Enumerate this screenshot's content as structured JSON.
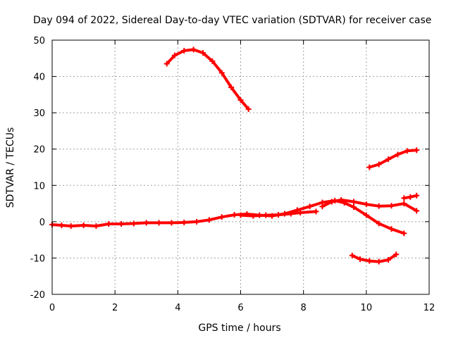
{
  "chart_data": {
    "type": "line",
    "title": "Day 094 of 2022, Sidereal Day-to-day VTEC variation (SDTVAR) for receiver case",
    "xlabel": "GPS time / hours",
    "ylabel": "SDTVAR / TECUs",
    "xlim": [
      0,
      12
    ],
    "ylim": [
      -20,
      50
    ],
    "xticks": [
      0,
      2,
      4,
      6,
      8,
      10,
      12
    ],
    "yticks": [
      -20,
      -10,
      0,
      10,
      20,
      30,
      40,
      50
    ],
    "grid": true,
    "color": "#ff0000",
    "series": [
      {
        "name": "arc-1",
        "x": [
          0.0,
          0.3,
          0.6,
          1.0,
          1.4,
          1.8,
          2.2,
          2.6,
          3.0,
          3.4,
          3.8,
          4.2,
          4.6,
          5.0,
          5.4,
          5.8,
          6.2,
          6.6,
          7.0,
          7.4,
          7.8,
          8.2,
          8.6,
          9.0,
          9.3,
          9.6,
          10.0,
          10.4,
          10.8,
          11.2
        ],
        "y": [
          -0.8,
          -1.0,
          -1.2,
          -1.0,
          -1.2,
          -0.6,
          -0.6,
          -0.5,
          -0.3,
          -0.3,
          -0.3,
          -0.2,
          0.0,
          0.5,
          1.3,
          1.9,
          2.1,
          1.8,
          1.6,
          2.2,
          3.2,
          4.2,
          5.3,
          5.8,
          5.2,
          4.0,
          1.8,
          -0.5,
          -2.0,
          -3.2
        ]
      },
      {
        "name": "arc-2",
        "x": [
          3.65,
          3.9,
          4.2,
          4.5,
          4.8,
          5.1,
          5.4,
          5.7,
          6.0,
          6.25
        ],
        "y": [
          43.5,
          45.8,
          47.1,
          47.4,
          46.5,
          44.2,
          41.0,
          37.0,
          33.5,
          31.0
        ]
      },
      {
        "name": "arc-3",
        "x": [
          6.0,
          6.4,
          6.8,
          7.2,
          7.6,
          7.9,
          8.4
        ],
        "y": [
          1.8,
          1.6,
          1.8,
          1.9,
          2.2,
          2.5,
          2.8
        ]
      },
      {
        "name": "arc-4",
        "x": [
          8.6,
          8.9,
          9.2,
          9.6,
          10.0,
          10.4,
          10.8,
          11.2,
          11.6
        ],
        "y": [
          4.2,
          5.5,
          6.0,
          5.5,
          4.8,
          4.3,
          4.4,
          5.0,
          3.0
        ]
      },
      {
        "name": "arc-5",
        "x": [
          10.1,
          10.4,
          10.7,
          11.0,
          11.3,
          11.6
        ],
        "y": [
          15.0,
          15.8,
          17.2,
          18.5,
          19.5,
          19.7
        ]
      },
      {
        "name": "arc-6",
        "x": [
          9.55,
          9.8,
          10.1,
          10.4,
          10.7,
          10.95
        ],
        "y": [
          -9.3,
          -10.3,
          -10.8,
          -11.0,
          -10.5,
          -9.0
        ]
      },
      {
        "name": "arc-7",
        "x": [
          11.2,
          11.4,
          11.6
        ],
        "y": [
          6.5,
          6.8,
          7.2
        ]
      }
    ]
  }
}
